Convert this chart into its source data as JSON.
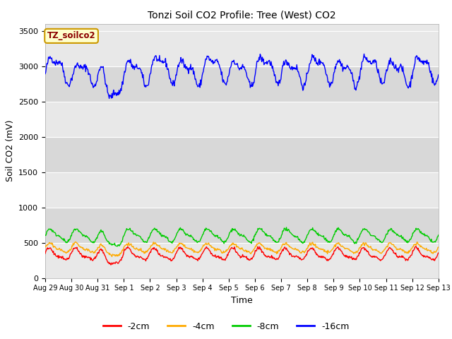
{
  "title": "Tonzi Soil CO2 Profile: Tree (West) CO2",
  "ylabel": "Soil CO2 (mV)",
  "xlabel": "Time",
  "ylim": [
    0,
    3600
  ],
  "yticks": [
    0,
    500,
    1000,
    1500,
    2000,
    2500,
    3000,
    3500
  ],
  "legend_label": "TZ_soilco2",
  "series_labels": [
    "-2cm",
    "-4cm",
    "-8cm",
    "-16cm"
  ],
  "series_colors": [
    "#ff0000",
    "#ffaa00",
    "#00cc00",
    "#0000ff"
  ],
  "fig_facecolor": "#ffffff",
  "plot_bg_color": "#e8e8e8",
  "band_colors": [
    "#e0e0e0",
    "#d0d0d0"
  ],
  "n_days": 15,
  "seed": 42
}
